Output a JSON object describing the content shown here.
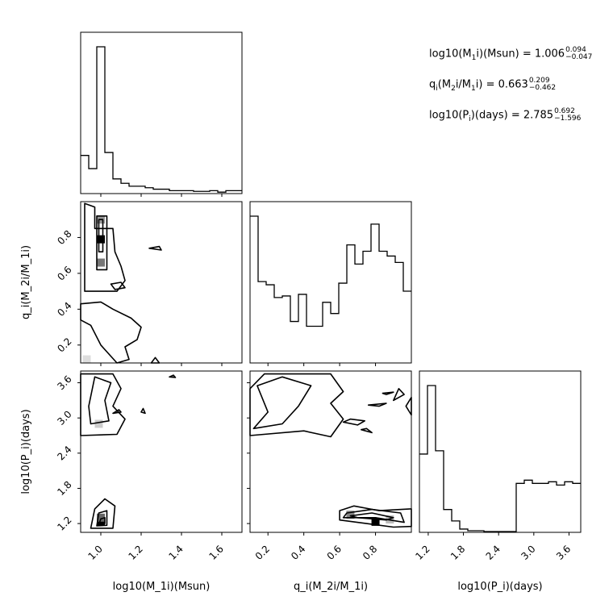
{
  "chart_data": {
    "type": "corner",
    "variables": [
      {
        "key": "m1",
        "label": "log10(M_1i)(Msun)",
        "range": [
          0.9,
          1.7
        ],
        "ticks": [
          "1.0",
          "1.2",
          "1.4",
          "1.6"
        ]
      },
      {
        "key": "q",
        "label": "q_i(M_2i/M_1i)",
        "range": [
          0.1,
          1.0
        ],
        "ticks": [
          "0.2",
          "0.4",
          "0.6",
          "0.8"
        ]
      },
      {
        "key": "p",
        "label": "log10(P_i)(days)",
        "range": [
          1.05,
          3.8
        ],
        "ticks": [
          "1.2",
          "1.8",
          "2.4",
          "3.0",
          "3.6"
        ]
      }
    ],
    "histograms": {
      "m1": {
        "edges": [
          0.9,
          0.94,
          0.98,
          1.02,
          1.06,
          1.1,
          1.14,
          1.18,
          1.22,
          1.26,
          1.3,
          1.34,
          1.38,
          1.42,
          1.46,
          1.5,
          1.54,
          1.58,
          1.62,
          1.66,
          1.7
        ],
        "counts": [
          0.26,
          0.17,
          1.0,
          0.28,
          0.1,
          0.07,
          0.05,
          0.05,
          0.04,
          0.03,
          0.03,
          0.02,
          0.02,
          0.02,
          0.015,
          0.015,
          0.02,
          0.01,
          0.02,
          0.02
        ]
      },
      "q": {
        "edges": [
          0.1,
          0.145,
          0.19,
          0.235,
          0.28,
          0.325,
          0.37,
          0.415,
          0.46,
          0.505,
          0.55,
          0.595,
          0.64,
          0.685,
          0.73,
          0.775,
          0.82,
          0.865,
          0.91,
          0.955,
          1.0
        ],
        "counts": [
          0.92,
          0.51,
          0.49,
          0.41,
          0.42,
          0.26,
          0.43,
          0.23,
          0.23,
          0.38,
          0.31,
          0.5,
          0.74,
          0.62,
          0.7,
          0.87,
          0.7,
          0.67,
          0.63,
          0.45
        ]
      },
      "p": {
        "edges": [
          1.05,
          1.1875,
          1.325,
          1.4625,
          1.6,
          1.7375,
          1.875,
          2.0125,
          2.15,
          2.2875,
          2.425,
          2.5625,
          2.7,
          2.8375,
          2.975,
          3.1125,
          3.25,
          3.3875,
          3.525,
          3.6625,
          3.8
        ],
        "counts": [
          0.48,
          0.9,
          0.5,
          0.14,
          0.07,
          0.02,
          0.01,
          0.01,
          0.005,
          0.005,
          0.005,
          0.005,
          0.3,
          0.32,
          0.3,
          0.3,
          0.31,
          0.29,
          0.31,
          0.3
        ]
      }
    },
    "contours_2d": {
      "q_vs_m1": [
        [
          [
            0.92,
            0.99
          ],
          [
            0.97,
            0.97
          ],
          [
            0.97,
            0.85
          ],
          [
            1.06,
            0.85
          ],
          [
            1.07,
            0.72
          ],
          [
            1.1,
            0.64
          ],
          [
            1.12,
            0.56
          ],
          [
            1.08,
            0.5
          ],
          [
            0.92,
            0.5
          ]
        ],
        [
          [
            0.98,
            0.92
          ],
          [
            1.03,
            0.92
          ],
          [
            1.03,
            0.62
          ],
          [
            0.98,
            0.62
          ]
        ],
        [
          [
            0.99,
            0.9
          ],
          [
            1.01,
            0.9
          ],
          [
            1.01,
            0.72
          ],
          [
            0.99,
            0.72
          ]
        ],
        [
          [
            1.05,
            0.54
          ],
          [
            1.1,
            0.55
          ],
          [
            1.12,
            0.52
          ],
          [
            1.07,
            0.51
          ]
        ],
        [
          [
            0.9,
            0.43
          ],
          [
            1.0,
            0.44
          ],
          [
            1.06,
            0.4
          ],
          [
            1.15,
            0.35
          ],
          [
            1.2,
            0.3
          ],
          [
            1.18,
            0.23
          ],
          [
            1.12,
            0.19
          ],
          [
            1.14,
            0.12
          ],
          [
            1.08,
            0.1
          ],
          [
            1.0,
            0.2
          ],
          [
            0.95,
            0.31
          ],
          [
            0.9,
            0.34
          ]
        ],
        [
          [
            1.24,
            0.74
          ],
          [
            1.29,
            0.75
          ],
          [
            1.3,
            0.73
          ]
        ],
        [
          [
            1.25,
            0.1
          ],
          [
            1.27,
            0.13
          ],
          [
            1.29,
            0.1
          ]
        ]
      ],
      "p_vs_m1": [
        [
          [
            0.9,
            2.7
          ],
          [
            1.08,
            2.72
          ],
          [
            1.12,
            2.98
          ],
          [
            1.06,
            3.2
          ],
          [
            1.1,
            3.5
          ],
          [
            1.06,
            3.75
          ],
          [
            0.9,
            3.75
          ]
        ],
        [
          [
            0.95,
            2.9
          ],
          [
            1.04,
            2.95
          ],
          [
            1.02,
            3.3
          ],
          [
            1.05,
            3.6
          ],
          [
            0.97,
            3.7
          ],
          [
            0.94,
            3.2
          ]
        ],
        [
          [
            1.06,
            3.08
          ],
          [
            1.1,
            3.1
          ],
          [
            1.09,
            3.14
          ]
        ],
        [
          [
            1.2,
            3.1
          ],
          [
            1.21,
            3.16
          ],
          [
            1.22,
            3.08
          ]
        ],
        [
          [
            1.34,
            3.7
          ],
          [
            1.36,
            3.73
          ],
          [
            1.37,
            3.69
          ]
        ],
        [
          [
            0.95,
            1.12
          ],
          [
            1.06,
            1.12
          ],
          [
            1.07,
            1.5
          ],
          [
            1.02,
            1.62
          ],
          [
            0.97,
            1.45
          ]
        ],
        [
          [
            0.98,
            1.16
          ],
          [
            1.03,
            1.17
          ],
          [
            1.03,
            1.42
          ],
          [
            0.99,
            1.38
          ]
        ],
        [
          [
            0.99,
            1.18
          ],
          [
            1.02,
            1.2
          ],
          [
            1.02,
            1.3
          ],
          [
            1.0,
            1.28
          ]
        ]
      ],
      "p_vs_q": [
        [
          [
            0.1,
            2.7
          ],
          [
            0.4,
            2.78
          ],
          [
            0.55,
            2.68
          ],
          [
            0.62,
            2.98
          ],
          [
            0.55,
            3.25
          ],
          [
            0.62,
            3.45
          ],
          [
            0.55,
            3.75
          ],
          [
            0.18,
            3.75
          ],
          [
            0.1,
            3.5
          ]
        ],
        [
          [
            0.12,
            2.82
          ],
          [
            0.28,
            2.9
          ],
          [
            0.37,
            3.2
          ],
          [
            0.44,
            3.55
          ],
          [
            0.28,
            3.7
          ],
          [
            0.14,
            3.55
          ],
          [
            0.2,
            3.1
          ]
        ],
        [
          [
            0.7,
            2.88
          ],
          [
            0.74,
            2.95
          ],
          [
            0.66,
            2.98
          ],
          [
            0.62,
            2.93
          ]
        ],
        [
          [
            0.82,
            3.2
          ],
          [
            0.86,
            3.25
          ],
          [
            0.76,
            3.22
          ]
        ],
        [
          [
            0.86,
            3.4
          ],
          [
            0.9,
            3.44
          ],
          [
            0.84,
            3.42
          ]
        ],
        [
          [
            0.9,
            3.3
          ],
          [
            0.96,
            3.4
          ],
          [
            0.93,
            3.5
          ]
        ],
        [
          [
            0.97,
            3.2
          ],
          [
            1.0,
            3.05
          ],
          [
            1.0,
            3.35
          ]
        ],
        [
          [
            0.72,
            2.8
          ],
          [
            0.78,
            2.75
          ],
          [
            0.75,
            2.82
          ]
        ],
        [
          [
            0.6,
            1.26
          ],
          [
            0.75,
            1.2
          ],
          [
            0.9,
            1.14
          ],
          [
            1.0,
            1.15
          ],
          [
            1.0,
            1.45
          ],
          [
            0.82,
            1.42
          ],
          [
            0.68,
            1.5
          ],
          [
            0.6,
            1.42
          ]
        ],
        [
          [
            0.62,
            1.3
          ],
          [
            0.8,
            1.3
          ],
          [
            0.96,
            1.22
          ],
          [
            0.94,
            1.38
          ],
          [
            0.78,
            1.44
          ],
          [
            0.64,
            1.38
          ]
        ],
        [
          [
            0.7,
            1.3
          ],
          [
            0.86,
            1.26
          ],
          [
            0.9,
            1.3
          ],
          [
            0.78,
            1.38
          ],
          [
            0.66,
            1.33
          ]
        ]
      ]
    },
    "dense_cells": {
      "q_vs_m1": [
        [
          1.0,
          0.79,
          "#000000"
        ],
        [
          1.0,
          0.66,
          "#777777"
        ],
        [
          1.0,
          0.9,
          "#999999"
        ],
        [
          0.93,
          0.12,
          "#dddddd"
        ]
      ],
      "p_vs_m1": [
        [
          1.0,
          1.23,
          "#000000"
        ],
        [
          1.0,
          1.3,
          "#666666"
        ],
        [
          0.99,
          2.9,
          "#cccccc"
        ]
      ],
      "p_vs_q": [
        [
          0.8,
          1.23,
          "#000000"
        ],
        [
          0.66,
          1.35,
          "#888888"
        ],
        [
          0.88,
          1.27,
          "#bbbbbb"
        ]
      ]
    },
    "annotations": [
      {
        "pre": "log10(M",
        "sub": "1",
        "post": "i)(Msun) = ",
        "value": "1.006",
        "upper": "0.094",
        "lower": "−0.047"
      },
      {
        "pre": "q",
        "sub": "i",
        "post": "(M",
        "sub2": "2",
        "post2": "i/M",
        "sub3": "1",
        "post3": "i) = ",
        "value": "0.663",
        "upper": "0.209",
        "lower": "−0.462"
      },
      {
        "pre": "log10(P",
        "sub": "i",
        "post": ")(days) = ",
        "value": "2.785",
        "upper": "0.692",
        "lower": "−1.596"
      }
    ]
  }
}
